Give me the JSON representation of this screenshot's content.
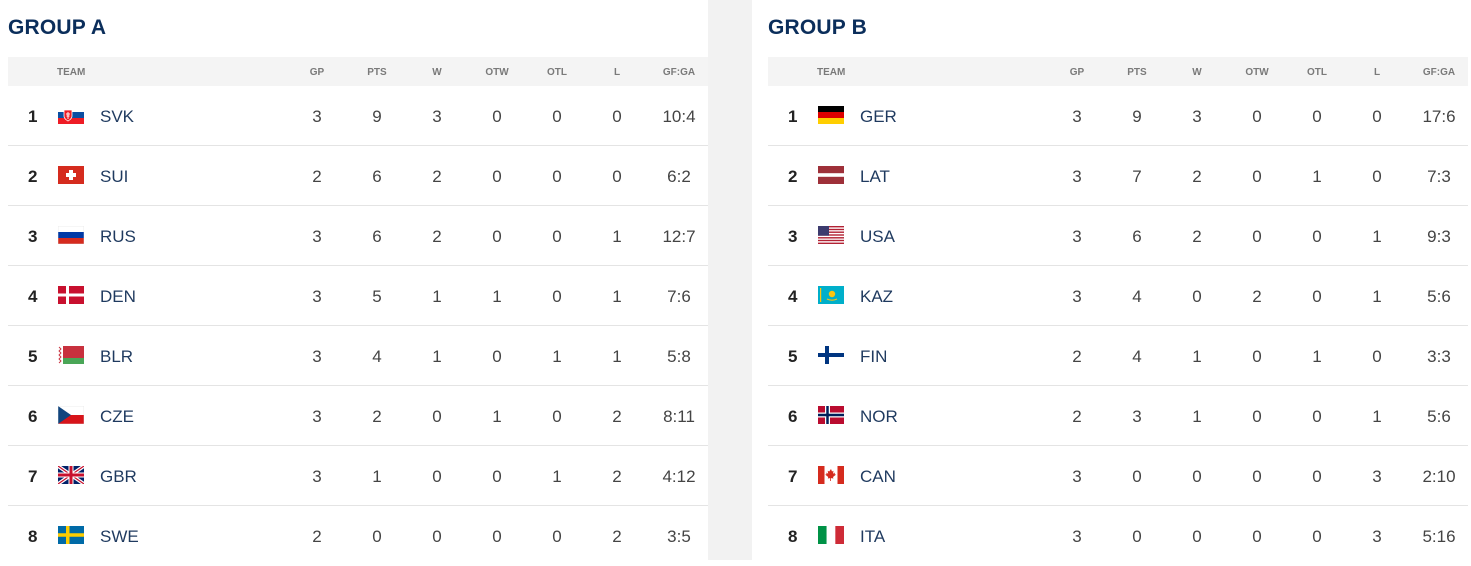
{
  "headers": {
    "team": "TEAM",
    "gp": "GP",
    "pts": "PTS",
    "w": "W",
    "otw": "OTW",
    "otl": "OTL",
    "l": "L",
    "gfga": "GF:GA"
  },
  "groups": [
    {
      "title": "GROUP A",
      "rows": [
        {
          "rank": "1",
          "team": "SVK",
          "gp": "3",
          "pts": "9",
          "w": "3",
          "otw": "0",
          "otl": "0",
          "l": "0",
          "gfga": "10:4",
          "flag": "slovakia-flag"
        },
        {
          "rank": "2",
          "team": "SUI",
          "gp": "2",
          "pts": "6",
          "w": "2",
          "otw": "0",
          "otl": "0",
          "l": "0",
          "gfga": "6:2",
          "flag": "switzerland-flag"
        },
        {
          "rank": "3",
          "team": "RUS",
          "gp": "3",
          "pts": "6",
          "w": "2",
          "otw": "0",
          "otl": "0",
          "l": "1",
          "gfga": "12:7",
          "flag": "russia-flag"
        },
        {
          "rank": "4",
          "team": "DEN",
          "gp": "3",
          "pts": "5",
          "w": "1",
          "otw": "1",
          "otl": "0",
          "l": "1",
          "gfga": "7:6",
          "flag": "denmark-flag"
        },
        {
          "rank": "5",
          "team": "BLR",
          "gp": "3",
          "pts": "4",
          "w": "1",
          "otw": "0",
          "otl": "1",
          "l": "1",
          "gfga": "5:8",
          "flag": "belarus-flag"
        },
        {
          "rank": "6",
          "team": "CZE",
          "gp": "3",
          "pts": "2",
          "w": "0",
          "otw": "1",
          "otl": "0",
          "l": "2",
          "gfga": "8:11",
          "flag": "czechia-flag"
        },
        {
          "rank": "7",
          "team": "GBR",
          "gp": "3",
          "pts": "1",
          "w": "0",
          "otw": "0",
          "otl": "1",
          "l": "2",
          "gfga": "4:12",
          "flag": "great-britain-flag"
        },
        {
          "rank": "8",
          "team": "SWE",
          "gp": "2",
          "pts": "0",
          "w": "0",
          "otw": "0",
          "otl": "0",
          "l": "2",
          "gfga": "3:5",
          "flag": "sweden-flag"
        }
      ]
    },
    {
      "title": "GROUP B",
      "rows": [
        {
          "rank": "1",
          "team": "GER",
          "gp": "3",
          "pts": "9",
          "w": "3",
          "otw": "0",
          "otl": "0",
          "l": "0",
          "gfga": "17:6",
          "flag": "germany-flag"
        },
        {
          "rank": "2",
          "team": "LAT",
          "gp": "3",
          "pts": "7",
          "w": "2",
          "otw": "0",
          "otl": "1",
          "l": "0",
          "gfga": "7:3",
          "flag": "latvia-flag"
        },
        {
          "rank": "3",
          "team": "USA",
          "gp": "3",
          "pts": "6",
          "w": "2",
          "otw": "0",
          "otl": "0",
          "l": "1",
          "gfga": "9:3",
          "flag": "usa-flag"
        },
        {
          "rank": "4",
          "team": "KAZ",
          "gp": "3",
          "pts": "4",
          "w": "0",
          "otw": "2",
          "otl": "0",
          "l": "1",
          "gfga": "5:6",
          "flag": "kazakhstan-flag"
        },
        {
          "rank": "5",
          "team": "FIN",
          "gp": "2",
          "pts": "4",
          "w": "1",
          "otw": "0",
          "otl": "1",
          "l": "0",
          "gfga": "3:3",
          "flag": "finland-flag"
        },
        {
          "rank": "6",
          "team": "NOR",
          "gp": "2",
          "pts": "3",
          "w": "1",
          "otw": "0",
          "otl": "0",
          "l": "1",
          "gfga": "5:6",
          "flag": "norway-flag"
        },
        {
          "rank": "7",
          "team": "CAN",
          "gp": "3",
          "pts": "0",
          "w": "0",
          "otw": "0",
          "otl": "0",
          "l": "3",
          "gfga": "2:10",
          "flag": "canada-flag"
        },
        {
          "rank": "8",
          "team": "ITA",
          "gp": "3",
          "pts": "0",
          "w": "0",
          "otw": "0",
          "otl": "0",
          "l": "3",
          "gfga": "5:16",
          "flag": "italy-flag"
        }
      ]
    }
  ]
}
